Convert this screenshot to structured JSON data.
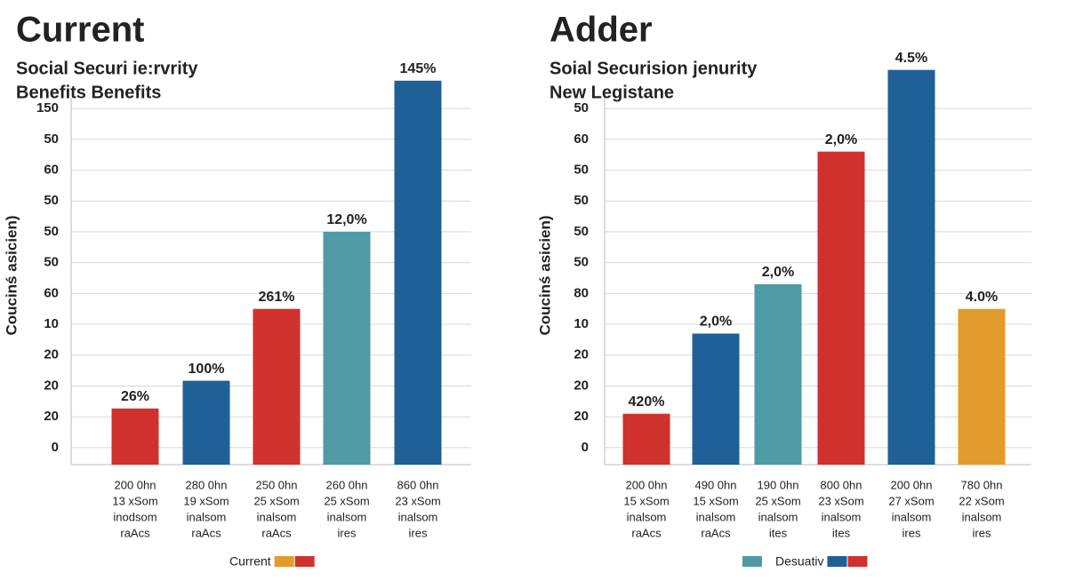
{
  "chart_data": [
    {
      "type": "bar",
      "title": "Current",
      "subtitle": [
        "Social Securi ie:rvrity",
        "Benefits Benefits"
      ],
      "y_label": "Coucinś asicien)",
      "categories": [
        [
          "200 0hn",
          "13 xSom",
          "inodsom",
          "raAcs"
        ],
        [
          "280 0hn",
          "19 xSom",
          "inalsom",
          "raAcs"
        ],
        [
          "250 0hn",
          "25 xSom",
          "inalsom",
          "raAcs"
        ],
        [
          "260 0hn",
          "25 xSom",
          "inalsom",
          "ires"
        ],
        [
          "860 0hn",
          "23 xSom",
          "inalsom",
          "ires"
        ]
      ],
      "values": [
        1.27,
        2.17,
        4.5,
        7.0,
        11.9
      ],
      "bar_labels": [
        "26%",
        "100%",
        "261%",
        "12,0%",
        "145%"
      ],
      "colors": [
        "#d0312d",
        "#1f6096",
        "#d0312d",
        "#4f9aa4",
        "#1f6096"
      ],
      "ylim": [
        -0.55,
        12.5
      ],
      "yticks": [
        0,
        {
          "value": 1,
          "label": "20"
        },
        {
          "value": 2,
          "label": "20"
        },
        {
          "value": 3,
          "label": "20"
        },
        {
          "value": 4,
          "label": "10"
        },
        {
          "value": 5,
          "label": "60"
        },
        {
          "value": 6,
          "label": "50"
        },
        {
          "value": 7,
          "label": "50"
        },
        {
          "value": 8,
          "label": "50"
        },
        {
          "value": 9,
          "label": "60"
        },
        {
          "value": 10,
          "label": "50"
        },
        {
          "value": 11,
          "label": "150"
        }
      ],
      "grid": true,
      "legend": {
        "label": "Current",
        "colors_before": [],
        "colors_after": [
          "#e39b2d",
          "#d0312d"
        ]
      }
    },
    {
      "type": "bar",
      "title": "Adder",
      "subtitle": [
        "Soial Securision jenurity",
        "New Legistane"
      ],
      "y_label": "Coucinś asicien)",
      "categories": [
        [
          "200 0hn",
          "15 xSom",
          "inalsom",
          "raAcs"
        ],
        [
          "490 0hn",
          "15 xSom",
          "inalsom",
          "raAcs"
        ],
        [
          "190 0hn",
          "25 xSom",
          "inalsom",
          "ites"
        ],
        [
          "800 0hn",
          "23 xSom",
          "inalsom",
          "ites"
        ],
        [
          "200 0hn",
          "27 xSom",
          "inalsom",
          "ires"
        ],
        [
          "780 0hn",
          "22 xSom",
          "inalsom",
          "ires"
        ]
      ],
      "values": [
        1.1,
        3.7,
        5.3,
        9.6,
        12.25,
        4.5
      ],
      "bar_labels": [
        "420%",
        "2,0%",
        "2,0%",
        "2,0%",
        "4.5%",
        "4.0%"
      ],
      "colors": [
        "#d0312d",
        "#1f6096",
        "#4f9aa4",
        "#d0312d",
        "#1f6096",
        "#e39b2d"
      ],
      "ylim": [
        -0.55,
        12.5
      ],
      "yticks": [
        0,
        {
          "value": 1,
          "label": "20"
        },
        {
          "value": 2,
          "label": "20"
        },
        {
          "value": 3,
          "label": "20"
        },
        {
          "value": 4,
          "label": "10"
        },
        {
          "value": 5,
          "label": "80"
        },
        {
          "value": 6,
          "label": "50"
        },
        {
          "value": 7,
          "label": "50"
        },
        {
          "value": 8,
          "label": "50"
        },
        {
          "value": 9,
          "label": "50"
        },
        {
          "value": 10,
          "label": "60"
        },
        {
          "value": 11,
          "label": "50"
        }
      ],
      "grid": true,
      "legend": {
        "label": "Desuativ",
        "colors_before": [
          "#4f9aa4"
        ],
        "colors_after": [
          "#1f6096",
          "#d0312d"
        ]
      }
    }
  ]
}
